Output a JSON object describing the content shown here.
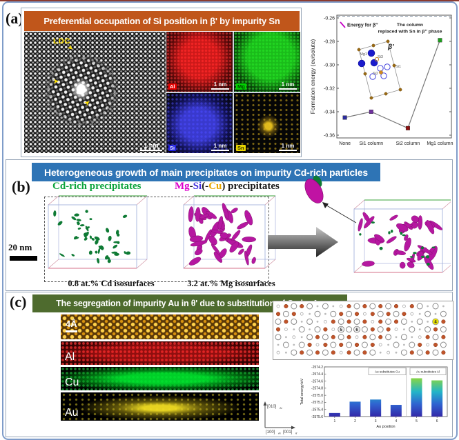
{
  "chart_data": [
    {
      "id": "formation-energy-line",
      "type": "line",
      "categories": [
        "None",
        "Si1 column",
        "Si2 column",
        "Mg1 column"
      ],
      "values": [
        -0.345,
        -0.34,
        -0.354,
        -0.279
      ],
      "marker_colors": [
        "#2c2c9e",
        "#7030a0",
        "#8f1010",
        "#1e9e1e"
      ],
      "ylabel": "Formation energy (ev/solute)",
      "xlabel": "",
      "ylim": [
        -0.36,
        -0.26
      ],
      "yticks": [
        "-0.26",
        "-0.28",
        "-0.30",
        "-0.32",
        "-0.34",
        "-0.36"
      ],
      "reference_line": {
        "value": -0.2585,
        "label": "Energy for β″",
        "color": "#c400c4",
        "style": "dashed"
      },
      "annotation_lines": [
        "The column",
        "replaced with Sn in β″ phase"
      ],
      "inset": {
        "phase_label": "β'",
        "atom_labels": [
          "Mg1",
          "Si3",
          "Si1",
          "Si2"
        ]
      },
      "legend_position": "top-left",
      "grid": false
    },
    {
      "id": "total-energy-bars",
      "type": "bar",
      "categories": [
        "1",
        "2",
        "3",
        "4",
        "5",
        "6"
      ],
      "values": [
        -2575.5,
        -2575.18,
        -2575.12,
        -2575.27,
        -2574.52,
        -2574.58
      ],
      "baseline": -2575.6,
      "ylabel": "Total energy/eV",
      "xlabel": "Au position",
      "ylim": [
        -2575.6,
        -2574.2
      ],
      "yticks": [
        "-2574.2",
        "-2574.4",
        "-2574.6",
        "-2574.8",
        "-2575.0",
        "-2575.2",
        "-2575.4",
        "-2575.6"
      ],
      "group_labels": [
        "Au substitutes Cu",
        "Au substitutes Al"
      ],
      "group_split_after_category": "4",
      "bar_colormap": [
        "#3328a8",
        "#2f63d0",
        "#22b5c8",
        "#7fd34e",
        "#f7e620"
      ],
      "grid": false
    }
  ],
  "figure": {
    "panel_a": {
      "label": "(a)",
      "banner": "Preferential occupation of Si position in β' by impurity Sn",
      "banner_color": "#c0561b",
      "stem": {
        "annotation": "LDC",
        "scale": "1 nm"
      },
      "eds_maps": [
        {
          "element": "Al",
          "chip_bg": "#e80000",
          "chip_text": "#ffffff",
          "scale": "1 nm"
        },
        {
          "element": "Mg",
          "chip_bg": "#00d400",
          "chip_text": "#004400",
          "scale": "1 nm"
        },
        {
          "element": "Si",
          "chip_bg": "#2020e0",
          "chip_text": "#ffffff",
          "scale": "1 nm"
        },
        {
          "element": "Sn",
          "chip_bg": "#e8d400",
          "chip_text": "#333300",
          "scale": "1 nm"
        }
      ]
    },
    "panel_b": {
      "label": "(b)",
      "banner": "Heterogeneous growth of main precipitates on impurity Cd-rich particles",
      "banner_color": "#2e74b5",
      "legend_cd": {
        "text": "Cd-rich precipitates",
        "color": "#0ca43c"
      },
      "legend_mgsi": {
        "parts": [
          {
            "text": "Mg",
            "color": "#dd00cc"
          },
          {
            "text": "-",
            "color": "#1a1a1a"
          },
          {
            "text": "Si",
            "color": "#4433dd"
          },
          {
            "text": "(-",
            "color": "#1a1a1a"
          },
          {
            "text": "Cu",
            "color": "#e8a800"
          },
          {
            "text": ") precipitates",
            "color": "#1a1a1a"
          }
        ]
      },
      "scale_bar": "20 nm",
      "captions": [
        "0.8  at.% Cd isosurfaces",
        "3.2 at.% Mg isosurfaces"
      ],
      "precipitate_colors": {
        "cd_rich": "#0e7a34",
        "mg_si": "#b517a0"
      }
    },
    "panel_c": {
      "label": "(c)",
      "banner": "The segregation of impurity Au in θ' due to substitution of Cu by Au",
      "banner_color": "#4e6b2e",
      "strips": [
        {
          "label": "4Å",
          "kind": "haadf"
        },
        {
          "label": "Al",
          "kind": "eds",
          "color": "#d40000"
        },
        {
          "label": "Cu",
          "kind": "eds",
          "color": "#00c000"
        },
        {
          "label": "Au",
          "kind": "eds",
          "color": "#e0d000"
        }
      ],
      "lattice_numbers": [
        {
          "n": "4",
          "row": 2,
          "col": 20,
          "highlight": "#e8e000"
        },
        {
          "n": "5",
          "row": 3,
          "col": 8,
          "highlight": ""
        },
        {
          "n": "6",
          "row": 3,
          "col": 10,
          "highlight": ""
        }
      ],
      "axes_labels": {
        "up": "[010]",
        "up_sub": "Al",
        "right1": "[100]",
        "right1_sub": "Al",
        "right2": "[001]",
        "right2_sub": "θ'"
      }
    }
  }
}
